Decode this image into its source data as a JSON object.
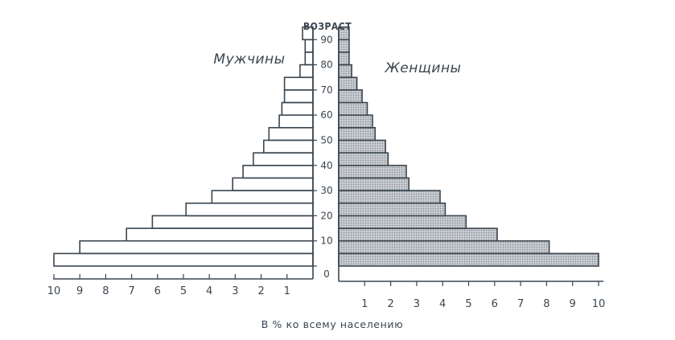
{
  "chart_data": {
    "type": "bar",
    "orientation": "horizontal",
    "subtype": "population-pyramid",
    "y_axis_title": "ВОЗРАСТ",
    "x_axis_title": "В % ко всему населению",
    "age_ticks": [
      "0",
      "10",
      "20",
      "30",
      "40",
      "50",
      "60",
      "70",
      "80",
      "90"
    ],
    "x_ticks": [
      "1",
      "2",
      "3",
      "4",
      "5",
      "6",
      "7",
      "8",
      "9",
      "10"
    ],
    "x_range": [
      0,
      10
    ],
    "age_range": [
      0,
      95
    ],
    "age_groups": [
      "0-4",
      "5-9",
      "10-14",
      "15-19",
      "20-24",
      "25-29",
      "30-34",
      "35-39",
      "40-44",
      "45-49",
      "50-54",
      "55-59",
      "60-64",
      "65-69",
      "70-74",
      "75-79",
      "80-84",
      "85-89",
      "90-94"
    ],
    "series": [
      {
        "name": "Мужчины",
        "side": "left",
        "fill": "#ffffff",
        "values": [
          10.0,
          9.0,
          7.2,
          6.2,
          4.9,
          3.9,
          3.1,
          2.7,
          2.3,
          1.9,
          1.7,
          1.3,
          1.2,
          1.1,
          1.1,
          0.5,
          0.3,
          0.3,
          0.4
        ]
      },
      {
        "name": "Женщины",
        "side": "right",
        "fill": "#c8ccd0",
        "values": [
          10.0,
          8.1,
          6.1,
          4.9,
          4.1,
          3.9,
          2.7,
          2.6,
          1.9,
          1.8,
          1.4,
          1.3,
          1.1,
          0.9,
          0.7,
          0.5,
          0.4,
          0.4,
          0.4
        ]
      }
    ],
    "colors": {
      "line": "#3b4650",
      "male_fill": "#ffffff",
      "female_fill": "#c8ccd0",
      "female_dots": "#7d868e"
    }
  }
}
